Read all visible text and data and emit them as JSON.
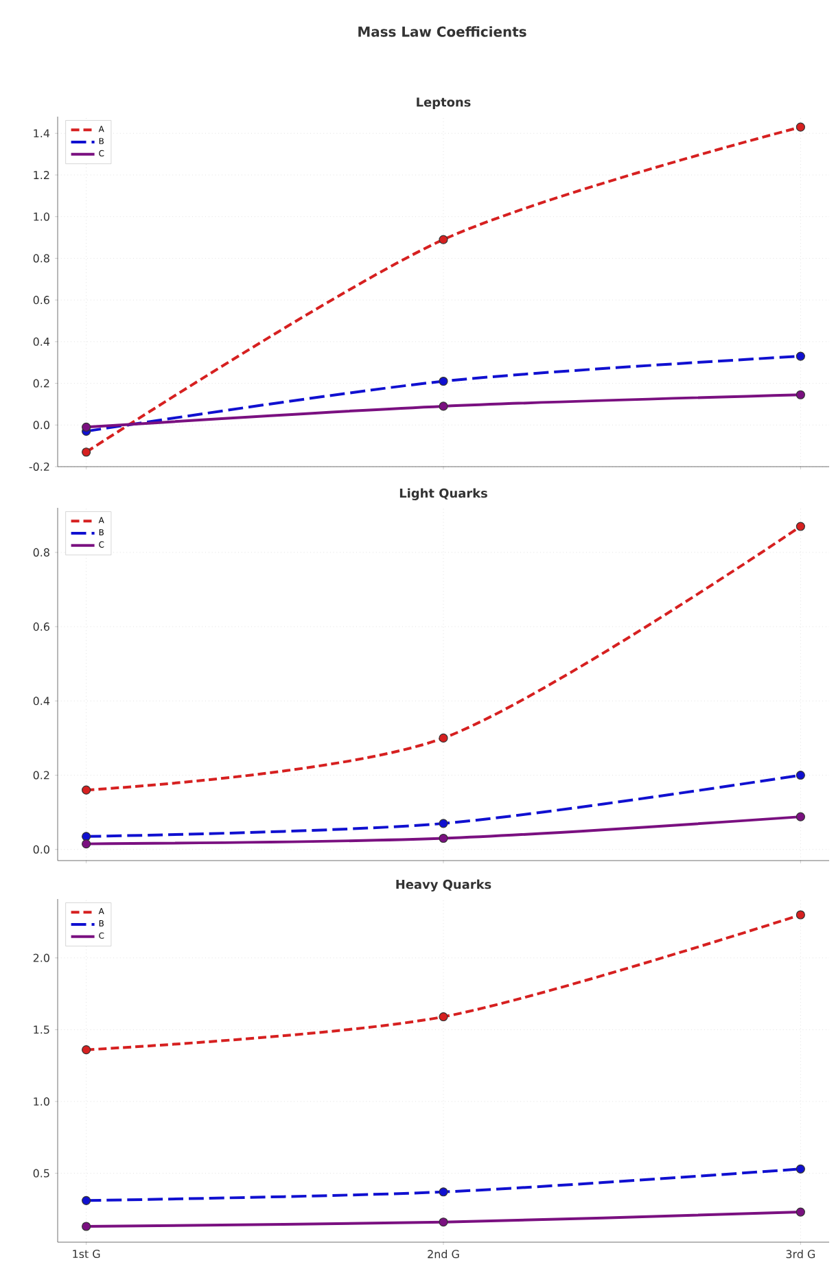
{
  "chart_data": [
    {
      "type": "line",
      "title": "Mass Law Coefficients",
      "subtitle": "Leptons",
      "categories": [
        null,
        null,
        null
      ],
      "ylim": [
        -0.2,
        1.48
      ],
      "yticks": [
        -0.2,
        {
          "value": 0,
          "label": "0.0"
        },
        0.2,
        0.4,
        0.6,
        0.8,
        {
          "value": 1,
          "label": "1.0"
        },
        1.2,
        1.4
      ],
      "grid": true,
      "legend": "top left",
      "marker": "circle",
      "tick_labels": "y",
      "series": [
        {
          "name": "A",
          "color": "#d62020",
          "line_style": "dashed",
          "values": [
            -0.13,
            0.89,
            1.43
          ]
        },
        {
          "name": "B",
          "color": "#1010d0",
          "line_style": "dashed",
          "values": [
            -0.03,
            0.21,
            0.33
          ]
        },
        {
          "name": "C",
          "color": "#7a1080",
          "line_style": "solid",
          "values": [
            -0.01,
            0.09,
            0.145
          ]
        }
      ]
    },
    {
      "type": "line",
      "title": "Light Quarks",
      "categories": [
        null,
        null,
        null
      ],
      "ylim": [
        -0.03,
        0.92
      ],
      "yticks": [
        {
          "value": 0,
          "label": "0.0"
        },
        0.2,
        0.4,
        0.6,
        0.8
      ],
      "grid": true,
      "legend": "top left",
      "marker": "circle",
      "tick_labels": "y",
      "series": [
        {
          "name": "A",
          "color": "#d62020",
          "line_style": "dashed",
          "values": [
            0.16,
            0.3,
            0.87
          ]
        },
        {
          "name": "B",
          "color": "#1010d0",
          "line_style": "dashed",
          "values": [
            0.035,
            0.07,
            0.2
          ]
        },
        {
          "name": "C",
          "color": "#7a1080",
          "line_style": "solid",
          "values": [
            0.015,
            0.03,
            0.088
          ]
        }
      ]
    },
    {
      "type": "line",
      "title": "Heavy Quarks",
      "categories": [
        "1st G",
        "2nd G",
        "3rd G"
      ],
      "ylim": [
        0.02,
        2.41
      ],
      "yticks": [
        0.5,
        {
          "value": 1,
          "label": "1.0"
        },
        1.5,
        {
          "value": 2,
          "label": "2.0"
        }
      ],
      "grid": true,
      "legend": "top left",
      "marker": "circle",
      "series": [
        {
          "name": "A",
          "color": "#d62020",
          "line_style": "dashed",
          "values": [
            1.36,
            1.59,
            2.3
          ]
        },
        {
          "name": "B",
          "color": "#1010d0",
          "line_style": "dashed",
          "values": [
            0.31,
            0.37,
            0.53
          ]
        },
        {
          "name": "C",
          "color": "#7a1080",
          "line_style": "solid",
          "values": [
            0.13,
            0.16,
            0.23
          ]
        }
      ]
    }
  ]
}
